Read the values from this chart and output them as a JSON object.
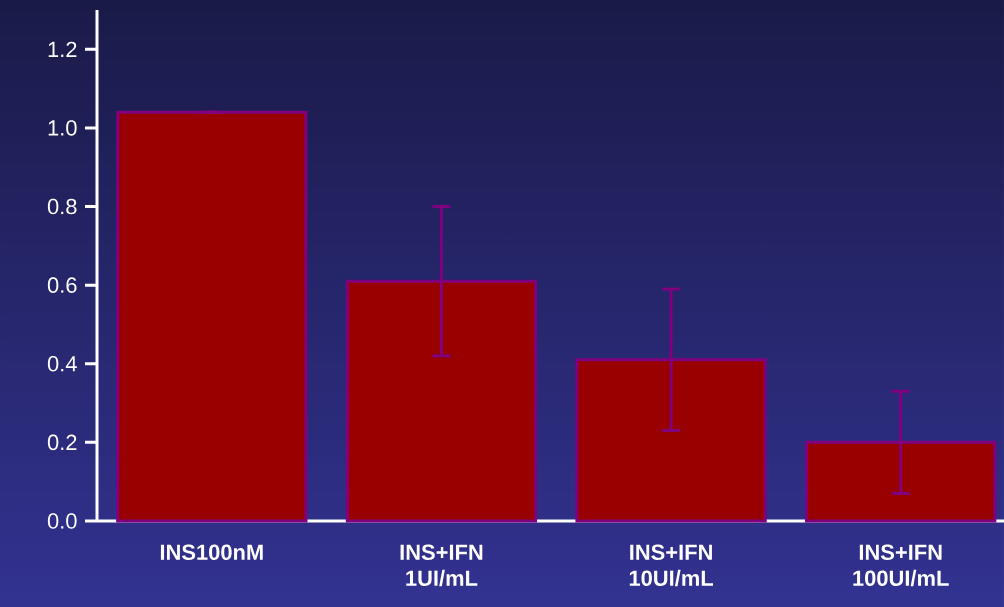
{
  "chart_data": {
    "type": "bar",
    "categories": [
      "INS100nM",
      "INS+IFN 1UI/mL",
      "INS+IFN 10UI/mL",
      "INS+IFN 100UI/mL"
    ],
    "values": [
      1.04,
      0.61,
      0.41,
      0.2
    ],
    "errors": [
      null,
      0.19,
      0.18,
      0.13
    ],
    "color": "#990000",
    "ylim": [
      0,
      1.3
    ],
    "yticks": [
      {
        "value": 0,
        "label": "0.0"
      },
      0.2,
      0.4,
      0.6,
      0.8,
      {
        "value": 1,
        "label": "1.0"
      },
      1.2
    ],
    "grid": false
  }
}
